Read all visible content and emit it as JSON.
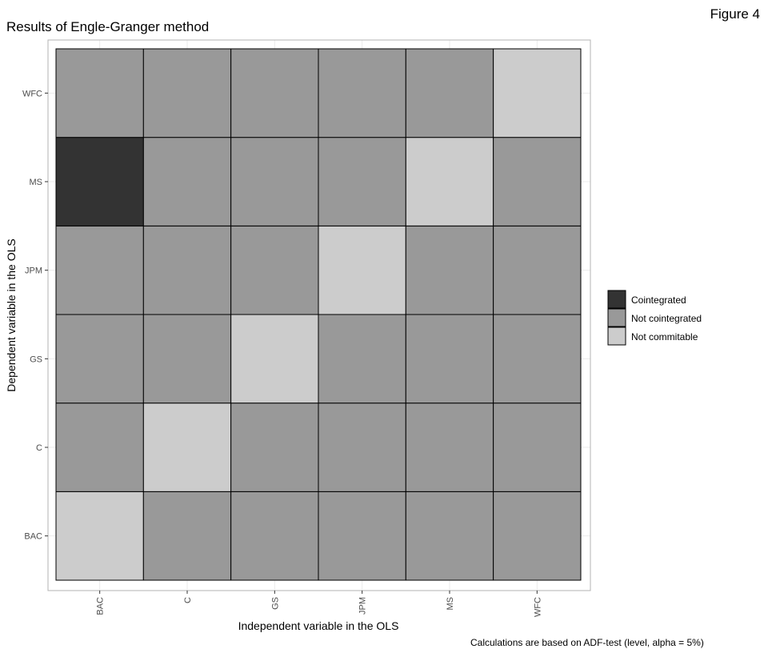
{
  "figure_label": "Figure 4",
  "caption": "Calculations are based on ADF-test (level, alpha = 5%)",
  "chart_data": {
    "type": "heatmap",
    "title": "Results of Engle-Granger method",
    "xlabel": "Independent variable in the OLS",
    "ylabel": "Dependent variable in the OLS",
    "x": [
      "BAC",
      "C",
      "GS",
      "JPM",
      "MS",
      "WFC"
    ],
    "y": [
      "BAC",
      "C",
      "GS",
      "JPM",
      "MS",
      "WFC"
    ],
    "categories": [
      "Cointegrated",
      "Not cointegrated",
      "Not commitable"
    ],
    "colors": {
      "Cointegrated": "#333333",
      "Not cointegrated": "#999999",
      "Not commitable": "#cccccc"
    },
    "cells": [
      {
        "x": "BAC",
        "y": "BAC",
        "value": "Not commitable"
      },
      {
        "x": "C",
        "y": "BAC",
        "value": "Not cointegrated"
      },
      {
        "x": "GS",
        "y": "BAC",
        "value": "Not cointegrated"
      },
      {
        "x": "JPM",
        "y": "BAC",
        "value": "Not cointegrated"
      },
      {
        "x": "MS",
        "y": "BAC",
        "value": "Not cointegrated"
      },
      {
        "x": "WFC",
        "y": "BAC",
        "value": "Not cointegrated"
      },
      {
        "x": "BAC",
        "y": "C",
        "value": "Not cointegrated"
      },
      {
        "x": "C",
        "y": "C",
        "value": "Not commitable"
      },
      {
        "x": "GS",
        "y": "C",
        "value": "Not cointegrated"
      },
      {
        "x": "JPM",
        "y": "C",
        "value": "Not cointegrated"
      },
      {
        "x": "MS",
        "y": "C",
        "value": "Not cointegrated"
      },
      {
        "x": "WFC",
        "y": "C",
        "value": "Not cointegrated"
      },
      {
        "x": "BAC",
        "y": "GS",
        "value": "Not cointegrated"
      },
      {
        "x": "C",
        "y": "GS",
        "value": "Not cointegrated"
      },
      {
        "x": "GS",
        "y": "GS",
        "value": "Not commitable"
      },
      {
        "x": "JPM",
        "y": "GS",
        "value": "Not cointegrated"
      },
      {
        "x": "MS",
        "y": "GS",
        "value": "Not cointegrated"
      },
      {
        "x": "WFC",
        "y": "GS",
        "value": "Not cointegrated"
      },
      {
        "x": "BAC",
        "y": "JPM",
        "value": "Not cointegrated"
      },
      {
        "x": "C",
        "y": "JPM",
        "value": "Not cointegrated"
      },
      {
        "x": "GS",
        "y": "JPM",
        "value": "Not cointegrated"
      },
      {
        "x": "JPM",
        "y": "JPM",
        "value": "Not commitable"
      },
      {
        "x": "MS",
        "y": "JPM",
        "value": "Not cointegrated"
      },
      {
        "x": "WFC",
        "y": "JPM",
        "value": "Not cointegrated"
      },
      {
        "x": "BAC",
        "y": "MS",
        "value": "Cointegrated"
      },
      {
        "x": "C",
        "y": "MS",
        "value": "Not cointegrated"
      },
      {
        "x": "GS",
        "y": "MS",
        "value": "Not cointegrated"
      },
      {
        "x": "JPM",
        "y": "MS",
        "value": "Not cointegrated"
      },
      {
        "x": "MS",
        "y": "MS",
        "value": "Not commitable"
      },
      {
        "x": "WFC",
        "y": "MS",
        "value": "Not cointegrated"
      },
      {
        "x": "BAC",
        "y": "WFC",
        "value": "Not cointegrated"
      },
      {
        "x": "C",
        "y": "WFC",
        "value": "Not cointegrated"
      },
      {
        "x": "GS",
        "y": "WFC",
        "value": "Not cointegrated"
      },
      {
        "x": "JPM",
        "y": "WFC",
        "value": "Not cointegrated"
      },
      {
        "x": "MS",
        "y": "WFC",
        "value": "Not cointegrated"
      },
      {
        "x": "WFC",
        "y": "WFC",
        "value": "Not commitable"
      }
    ],
    "legend_position": "right",
    "grid": true
  }
}
